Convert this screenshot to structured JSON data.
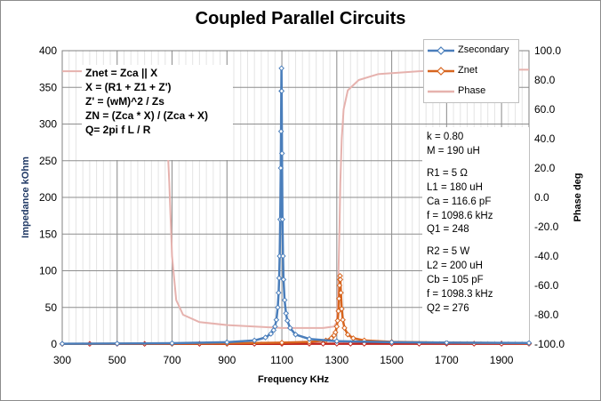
{
  "chart_data": {
    "type": "line",
    "title": "Coupled Parallel Circuits",
    "xlabel": "Frequency KHz",
    "ylabel": "Impedance kOhm",
    "y2label": "Phase deg",
    "xlim": [
      300,
      2000
    ],
    "ylim": [
      0,
      400
    ],
    "y2lim": [
      -100,
      100
    ],
    "xticks": [
      "300",
      "500",
      "700",
      "900",
      "1100",
      "1300",
      "1500",
      "1700",
      "1900"
    ],
    "yticks": [
      "0",
      "50",
      "100",
      "150",
      "200",
      "250",
      "300",
      "350",
      "400"
    ],
    "y2ticks": [
      "-100.0",
      "-80.0",
      "-60.0",
      "-40.0",
      "-20.0",
      "0.0",
      "20.0",
      "40.0",
      "60.0",
      "80.0",
      "100.0"
    ],
    "grid": true,
    "legend_position": "top-right",
    "series": [
      {
        "name": "Zsecondary",
        "color": "#4a7ebb",
        "axis": "left",
        "marker": "diamond",
        "points": [
          [
            300,
            0.5
          ],
          [
            500,
            0.7
          ],
          [
            700,
            1.2
          ],
          [
            900,
            2.5
          ],
          [
            1000,
            5
          ],
          [
            1040,
            9
          ],
          [
            1060,
            14
          ],
          [
            1070,
            19
          ],
          [
            1075,
            24
          ],
          [
            1080,
            33
          ],
          [
            1085,
            50
          ],
          [
            1088,
            70
          ],
          [
            1090,
            90
          ],
          [
            1092,
            120
          ],
          [
            1094,
            170
          ],
          [
            1096,
            240
          ],
          [
            1097,
            290
          ],
          [
            1098,
            345
          ],
          [
            1098.6,
            376
          ],
          [
            1099.2,
            345
          ],
          [
            1100.5,
            260
          ],
          [
            1102,
            170
          ],
          [
            1104,
            120
          ],
          [
            1106,
            88
          ],
          [
            1110,
            60
          ],
          [
            1115,
            42
          ],
          [
            1120,
            32
          ],
          [
            1130,
            22
          ],
          [
            1150,
            13
          ],
          [
            1200,
            7
          ],
          [
            1300,
            4
          ],
          [
            1500,
            2.5
          ],
          [
            1700,
            2
          ],
          [
            2000,
            1.5
          ]
        ]
      },
      {
        "name": "Znet",
        "color": "#d7651f",
        "axis": "left",
        "marker": "diamond",
        "points": [
          [
            300,
            0.3
          ],
          [
            700,
            0.6
          ],
          [
            900,
            1
          ],
          [
            1100,
            2
          ],
          [
            1200,
            3
          ],
          [
            1260,
            5
          ],
          [
            1280,
            8
          ],
          [
            1290,
            12
          ],
          [
            1295,
            16
          ],
          [
            1300,
            24
          ],
          [
            1303,
            32
          ],
          [
            1306,
            45
          ],
          [
            1308,
            62
          ],
          [
            1310,
            80
          ],
          [
            1311,
            88
          ],
          [
            1312,
            93
          ],
          [
            1313,
            88
          ],
          [
            1315,
            70
          ],
          [
            1318,
            48
          ],
          [
            1322,
            33
          ],
          [
            1328,
            22
          ],
          [
            1340,
            13
          ],
          [
            1360,
            8
          ],
          [
            1400,
            5
          ],
          [
            1500,
            3
          ],
          [
            1700,
            2
          ],
          [
            2000,
            1.2
          ]
        ]
      },
      {
        "name": "Phase",
        "color": "#e6b2ae",
        "axis": "right",
        "marker": "none",
        "points": [
          [
            300,
            86
          ],
          [
            500,
            86
          ],
          [
            600,
            85
          ],
          [
            640,
            83
          ],
          [
            660,
            80
          ],
          [
            670,
            72
          ],
          [
            680,
            50
          ],
          [
            690,
            10
          ],
          [
            700,
            -40
          ],
          [
            715,
            -70
          ],
          [
            740,
            -80
          ],
          [
            800,
            -85
          ],
          [
            900,
            -87
          ],
          [
            1000,
            -88
          ],
          [
            1100,
            -89
          ],
          [
            1250,
            -89
          ],
          [
            1290,
            -88
          ],
          [
            1300,
            -85
          ],
          [
            1305,
            -60
          ],
          [
            1310,
            -20
          ],
          [
            1313,
            10
          ],
          [
            1318,
            40
          ],
          [
            1325,
            60
          ],
          [
            1340,
            73
          ],
          [
            1380,
            80
          ],
          [
            1450,
            84
          ],
          [
            1600,
            86
          ],
          [
            1800,
            87
          ],
          [
            2000,
            87
          ]
        ]
      },
      {
        "name": "",
        "color": "#c0261f",
        "axis": "left",
        "marker": "diamond",
        "points": [
          [
            300,
            0.3
          ],
          [
            400,
            0.3
          ],
          [
            500,
            0.3
          ],
          [
            600,
            0.3
          ],
          [
            700,
            0.3
          ],
          [
            800,
            0.4
          ],
          [
            900,
            0.4
          ],
          [
            1000,
            0.4
          ],
          [
            1100,
            0.4
          ],
          [
            1200,
            0.5
          ],
          [
            1250,
            0.5
          ],
          [
            1300,
            0.5
          ],
          [
            1350,
            0.5
          ],
          [
            1400,
            0.5
          ],
          [
            1500,
            0.5
          ],
          [
            1600,
            0.5
          ],
          [
            1700,
            0.5
          ],
          [
            1800,
            0.5
          ],
          [
            1900,
            0.5
          ],
          [
            2000,
            0.5
          ]
        ]
      }
    ]
  },
  "notes": {
    "formulas": [
      "Znet = Zca || X",
      "X = (R1 + Z1 + Z')",
      "Z' = (wM)^2 / Zs",
      "ZN = (Zca * X) / (Zca + X)",
      "Q= 2pi f L / R"
    ],
    "coupling": [
      "k = 0.80",
      "M = 190 uH"
    ],
    "primary": [
      "R1 = 5 Ω",
      "L1 = 180 uH",
      "Ca = 116.6 pF",
      "f = 1098.6 kHz",
      "Q1 = 248"
    ],
    "secondary": [
      "R2 = 5 W",
      "L2 = 200 uH",
      "Cb = 105 pF",
      "f = 1098.3 kHz",
      "Q2 = 276"
    ]
  }
}
